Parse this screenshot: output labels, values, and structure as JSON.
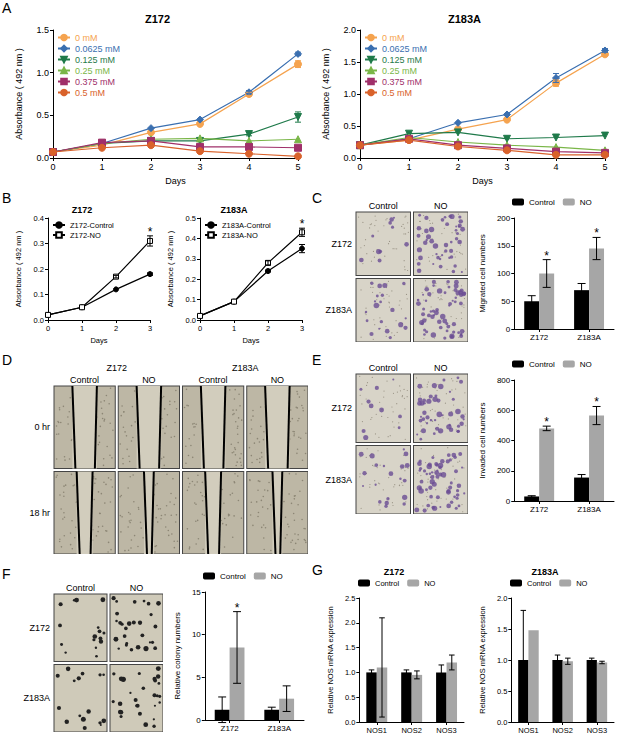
{
  "chart_data": [
    {
      "type": "line",
      "title": "Z172",
      "x_label": "Days",
      "y_label": "Absorbance ( 492 nm )",
      "x": [
        0,
        1,
        2,
        3,
        4,
        5
      ],
      "series": [
        {
          "name": "0 mM",
          "color": "#f5a34f",
          "marker": "circle",
          "values": [
            0.07,
            0.15,
            0.3,
            0.4,
            0.75,
            1.1
          ],
          "errors": [
            0,
            0,
            0,
            0,
            0.02,
            0.04
          ]
        },
        {
          "name": "0.0625 mM",
          "color": "#3a6fb0",
          "marker": "diamond",
          "values": [
            0.07,
            0.17,
            0.35,
            0.45,
            0.77,
            1.22
          ],
          "errors": [
            0,
            0,
            0,
            0,
            0.02,
            0.02
          ]
        },
        {
          "name": "0.125 mM",
          "color": "#1f7a4a",
          "marker": "triangle-down",
          "values": [
            0.07,
            0.17,
            0.2,
            0.2,
            0.28,
            0.48
          ],
          "errors": [
            0,
            0,
            0,
            0,
            0.02,
            0.06
          ]
        },
        {
          "name": "0.25 mM",
          "color": "#7ab648",
          "marker": "triangle",
          "values": [
            0.07,
            0.17,
            0.22,
            0.23,
            0.2,
            0.22
          ],
          "errors": [
            0,
            0,
            0,
            0,
            0,
            0
          ]
        },
        {
          "name": "0.375 mM",
          "color": "#a0306a",
          "marker": "square",
          "values": [
            0.07,
            0.18,
            0.2,
            0.13,
            0.13,
            0.12
          ],
          "errors": [
            0,
            0,
            0,
            0,
            0,
            0
          ]
        },
        {
          "name": "0.5 mM",
          "color": "#d9622b",
          "marker": "circle",
          "values": [
            0.07,
            0.12,
            0.15,
            0.08,
            0.05,
            0.02
          ],
          "errors": [
            0,
            0,
            0,
            0,
            0,
            0
          ]
        }
      ],
      "xlim": [
        0,
        5
      ],
      "xticks": [
        0,
        1,
        2,
        3,
        4,
        5
      ],
      "ylim": [
        0,
        1.5
      ],
      "yticks": [
        {
          "value": 0,
          "label": "0.0"
        },
        0.5,
        {
          "value": 1,
          "label": "1.0"
        },
        1.5
      ],
      "legend": "upper left"
    },
    {
      "type": "line",
      "title": "Z183A",
      "x_label": "Days",
      "y_label": "Absorbance ( 492 nm )",
      "x": [
        0,
        1,
        2,
        3,
        4,
        5
      ],
      "series": [
        {
          "name": "0 mM",
          "color": "#f5a34f",
          "marker": "circle",
          "values": [
            0.2,
            0.28,
            0.45,
            0.6,
            1.17,
            1.62
          ],
          "errors": [
            0,
            0,
            0,
            0,
            0.05,
            0.03
          ]
        },
        {
          "name": "0.0625 mM",
          "color": "#3a6fb0",
          "marker": "diamond",
          "values": [
            0.2,
            0.3,
            0.55,
            0.68,
            1.25,
            1.68
          ],
          "errors": [
            0,
            0,
            0,
            0,
            0.07,
            0.03
          ]
        },
        {
          "name": "0.125 mM",
          "color": "#1f7a4a",
          "marker": "triangle-down",
          "values": [
            0.2,
            0.38,
            0.4,
            0.3,
            0.32,
            0.35
          ],
          "errors": [
            0,
            0,
            0,
            0,
            0,
            0
          ]
        },
        {
          "name": "0.25 mM",
          "color": "#7ab648",
          "marker": "triangle",
          "values": [
            0.2,
            0.32,
            0.25,
            0.2,
            0.17,
            0.12
          ],
          "errors": [
            0,
            0,
            0,
            0,
            0,
            0
          ]
        },
        {
          "name": "0.375 mM",
          "color": "#a0306a",
          "marker": "square",
          "values": [
            0.2,
            0.3,
            0.2,
            0.15,
            0.1,
            0.08
          ],
          "errors": [
            0,
            0,
            0,
            0,
            0,
            0
          ]
        },
        {
          "name": "0.5 mM",
          "color": "#d9622b",
          "marker": "circle",
          "values": [
            0.2,
            0.28,
            0.18,
            0.12,
            0.05,
            0.05
          ],
          "errors": [
            0,
            0,
            0,
            0,
            0,
            0
          ]
        }
      ],
      "xlim": [
        0,
        5
      ],
      "xticks": [
        0,
        1,
        2,
        3,
        4,
        5
      ],
      "ylim": [
        0,
        2
      ],
      "yticks": [
        {
          "value": 0,
          "label": "0.0"
        },
        0.5,
        {
          "value": 1,
          "label": "1.0"
        },
        1.5,
        {
          "value": 2,
          "label": "2.0"
        }
      ],
      "legend": "upper left"
    },
    {
      "type": "line",
      "title": "Z172",
      "x_label": "Days",
      "y_label": "Absorbance ( 492 nm )",
      "x": [
        0,
        1,
        2,
        3
      ],
      "series": [
        {
          "name": "Z172-Control",
          "color": "#000000",
          "marker": "circle",
          "values": [
            0.02,
            0.05,
            0.12,
            0.18
          ],
          "errors": [
            0,
            0,
            0,
            0.005
          ]
        },
        {
          "name": "Z172-NO",
          "color": "#000000",
          "marker": "square_open",
          "values": [
            0.02,
            0.05,
            0.17,
            0.31
          ],
          "errors": [
            0,
            0,
            0.005,
            0.02
          ]
        }
      ],
      "xlim": [
        0,
        3
      ],
      "xticks": [
        0,
        1,
        2,
        3
      ],
      "ylim": [
        0,
        0.4
      ],
      "yticks": [
        {
          "value": 0,
          "label": "0.0"
        },
        0.1,
        0.2,
        0.3,
        0.4
      ],
      "legend": "upper left",
      "annotations": [
        {
          "x": 3,
          "series": "Z172-NO",
          "text": "*"
        }
      ]
    },
    {
      "type": "line",
      "title": "Z183A",
      "x_label": "Days",
      "y_label": "Absorbance ( 492 nm )",
      "x": [
        0,
        1,
        2,
        3
      ],
      "series": [
        {
          "name": "Z183A-Control",
          "color": "#000000",
          "marker": "circle",
          "values": [
            0.02,
            0.09,
            0.24,
            0.35
          ],
          "errors": [
            0,
            0,
            0.005,
            0.02
          ]
        },
        {
          "name": "Z183A-NO",
          "color": "#000000",
          "marker": "square_open",
          "values": [
            0.02,
            0.09,
            0.28,
            0.43
          ],
          "errors": [
            0,
            0,
            0.01,
            0.02
          ]
        }
      ],
      "xlim": [
        0,
        3
      ],
      "xticks": [
        0,
        1,
        2,
        3
      ],
      "ylim": [
        0,
        0.5
      ],
      "yticks": [
        {
          "value": 0,
          "label": "0.0"
        },
        0.1,
        0.2,
        0.3,
        0.4,
        0.5
      ],
      "legend": "upper left",
      "annotations": [
        {
          "x": 3,
          "series": "Z183A-NO",
          "text": "*"
        }
      ]
    },
    {
      "type": "bar",
      "y_label": "Migrated cell numbers",
      "categories": [
        "Z172",
        "Z183A"
      ],
      "series": [
        {
          "name": "Control",
          "color": "#000000",
          "values": [
            50,
            70
          ],
          "errors": [
            10,
            12
          ]
        },
        {
          "name": "NO",
          "color": "#a6a6a6",
          "values": [
            100,
            145
          ],
          "errors": [
            25,
            20
          ]
        }
      ],
      "ylim": [
        0,
        200
      ],
      "yticks": [
        0,
        50,
        100,
        150,
        200
      ],
      "legend": "upper left",
      "annotations": [
        {
          "category": "Z172",
          "series": "NO",
          "text": "*"
        },
        {
          "category": "Z183A",
          "series": "NO",
          "text": "*"
        }
      ]
    },
    {
      "type": "bar",
      "y_label": "Invaded cell numbers",
      "categories": [
        "Z172",
        "Z183A"
      ],
      "series": [
        {
          "name": "Control",
          "color": "#000000",
          "values": [
            30,
            155
          ],
          "errors": [
            5,
            20
          ]
        },
        {
          "name": "NO",
          "color": "#a6a6a6",
          "values": [
            480,
            565
          ],
          "errors": [
            15,
            60
          ]
        }
      ],
      "ylim": [
        0,
        800
      ],
      "yticks": [
        0,
        200,
        400,
        600,
        800
      ],
      "legend": "upper left",
      "annotations": [
        {
          "category": "Z172",
          "series": "NO",
          "text": "*"
        },
        {
          "category": "Z183A",
          "series": "NO",
          "text": "*"
        }
      ]
    },
    {
      "type": "bar",
      "y_label": "Relative colony numbers",
      "categories": [
        "Z172",
        "Z183A"
      ],
      "series": [
        {
          "name": "Control",
          "color": "#000000",
          "values": [
            1.2,
            1.2
          ],
          "errors": [
            1.5,
            0.3
          ]
        },
        {
          "name": "NO",
          "color": "#a6a6a6",
          "values": [
            8.5,
            2.5
          ],
          "errors": [
            4.2,
            1.5
          ]
        }
      ],
      "ylim": [
        0,
        15
      ],
      "yticks": [
        0,
        5,
        10,
        15
      ],
      "legend": "upper left",
      "annotations": [
        {
          "category": "Z172",
          "series": "NO",
          "text": "*"
        }
      ]
    },
    {
      "type": "bar",
      "title": "Z172",
      "y_label": "Relative NOS mRNA expression",
      "categories": [
        "NOS1",
        "NOS2",
        "NOS3"
      ],
      "series": [
        {
          "name": "Control",
          "color": "#000000",
          "values": [
            1.0,
            1.0,
            1.0
          ],
          "errors": [
            0.05,
            0.05,
            0.15
          ]
        },
        {
          "name": "NO",
          "color": "#a6a6a6",
          "values": [
            1.1,
            0.95,
            1.2
          ],
          "errors": [
            1.0,
            0.08,
            0.15
          ]
        }
      ],
      "ylim": [
        0,
        2.5
      ],
      "yticks": [
        {
          "value": 0,
          "label": "0.0"
        },
        0.5,
        {
          "value": 1,
          "label": "1.0"
        },
        1.5,
        {
          "value": 2,
          "label": "2.0"
        },
        2.5
      ],
      "legend": "upper left"
    },
    {
      "type": "bar",
      "title": "Z183A",
      "y_label": "Relative NOS mRNA expression",
      "categories": [
        "NOS1",
        "NOS2",
        "NOS3"
      ],
      "series": [
        {
          "name": "Control",
          "color": "#000000",
          "values": [
            1.0,
            1.0,
            1.0
          ],
          "errors": [
            0.8,
            0.08,
            0.03
          ]
        },
        {
          "name": "NO",
          "color": "#a6a6a6",
          "values": [
            1.48,
            0.98,
            0.96
          ],
          "errors": [
            0,
            0.05,
            0.02
          ]
        }
      ],
      "ylim": [
        0,
        2
      ],
      "yticks": [
        {
          "value": 0,
          "label": "0.0"
        },
        0.5,
        {
          "value": 1,
          "label": "1.0"
        },
        1.5,
        {
          "value": 2,
          "label": "2.0"
        }
      ],
      "legend": "upper left"
    }
  ],
  "image_panels": [
    {
      "rows": [
        "Z172",
        "Z183A"
      ],
      "columns": [
        "Control",
        "NO"
      ]
    },
    {
      "groups": [
        "Z172",
        "Z183A"
      ],
      "rows": [
        "0 hr",
        "18 hr"
      ],
      "columns": [
        "Control",
        "NO",
        "Control",
        "NO"
      ]
    },
    {
      "rows": [
        "Z172",
        "Z183A"
      ],
      "columns": [
        "Control",
        "NO"
      ]
    },
    {
      "rows": [
        "Z172",
        "Z183A"
      ],
      "columns": [
        "Control",
        "NO"
      ]
    }
  ],
  "panel_labels": [
    "A",
    "B",
    "C",
    "D",
    "E",
    "F",
    "G"
  ]
}
